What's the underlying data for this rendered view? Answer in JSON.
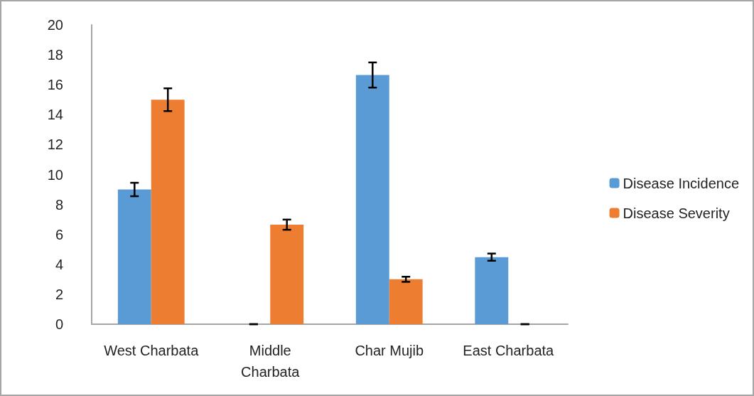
{
  "chart_data": {
    "type": "bar",
    "categories": [
      "West Charbata",
      "Middle\nCharbata",
      "Char Mujib",
      "East Charbata"
    ],
    "series": [
      {
        "name": "Disease Incidence",
        "color": "#5b9bd5",
        "values": [
          9.0,
          0,
          16.65,
          4.48
        ],
        "errors": [
          0.45,
          0,
          0.84,
          0.24
        ]
      },
      {
        "name": "Disease Severity",
        "color": "#ed7d31",
        "values": [
          15.0,
          6.65,
          3.0,
          0
        ],
        "errors": [
          0.76,
          0.34,
          0.17,
          0
        ]
      }
    ],
    "ylim": [
      0,
      20
    ],
    "yticks": [
      0,
      2,
      4,
      6,
      8,
      10,
      12,
      14,
      16,
      18,
      20
    ],
    "grid": false,
    "legend": "right"
  }
}
